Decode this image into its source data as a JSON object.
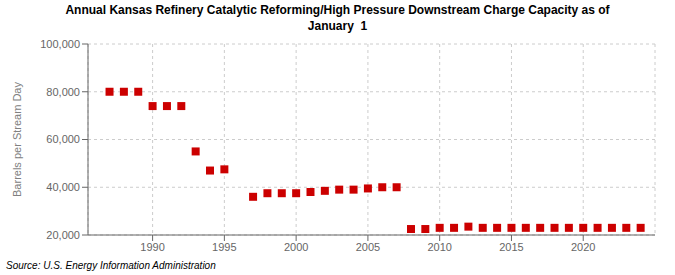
{
  "chart_data": {
    "type": "scatter",
    "title": "Annual Kansas Refinery Catalytic Reforming/High Pressure Downstream Charge Capacity as of\nJanuary  1",
    "y_label": "Barrels per Stream Day",
    "annotations": [
      "Source: U.S. Energy Information Administration"
    ],
    "color": "#cc0000",
    "marker": "square",
    "grid": true,
    "x": [
      1987,
      1988,
      1989,
      1990,
      1991,
      1992,
      1993,
      1994,
      1995,
      1997,
      1998,
      1999,
      2000,
      2001,
      2002,
      2003,
      2004,
      2005,
      2006,
      2007,
      2008,
      2009,
      2010,
      2011,
      2012,
      2013,
      2014,
      2015,
      2016,
      2017,
      2018,
      2019,
      2020,
      2021,
      2022,
      2023,
      2024
    ],
    "values": [
      80000,
      80000,
      80000,
      74000,
      74000,
      74000,
      55000,
      47000,
      47500,
      36000,
      37500,
      37500,
      37500,
      38000,
      38500,
      39000,
      39000,
      39500,
      40000,
      40000,
      22500,
      22500,
      23000,
      23000,
      23500,
      23000,
      23000,
      23000,
      23000,
      23000,
      23000,
      23000,
      23000,
      23000,
      23000,
      23000,
      23000
    ],
    "xlim": [
      1985.5,
      2025
    ],
    "xticks": [
      1990,
      1995,
      2000,
      2005,
      2010,
      2015,
      2020
    ],
    "ylim": [
      20000,
      100000
    ],
    "yticks": [
      {
        "value": 20000,
        "label": "20,000"
      },
      {
        "value": 40000,
        "label": "40,000"
      },
      {
        "value": 60000,
        "label": "60,000"
      },
      {
        "value": 80000,
        "label": "80,000"
      },
      {
        "value": 100000,
        "label": "100,000"
      }
    ]
  }
}
